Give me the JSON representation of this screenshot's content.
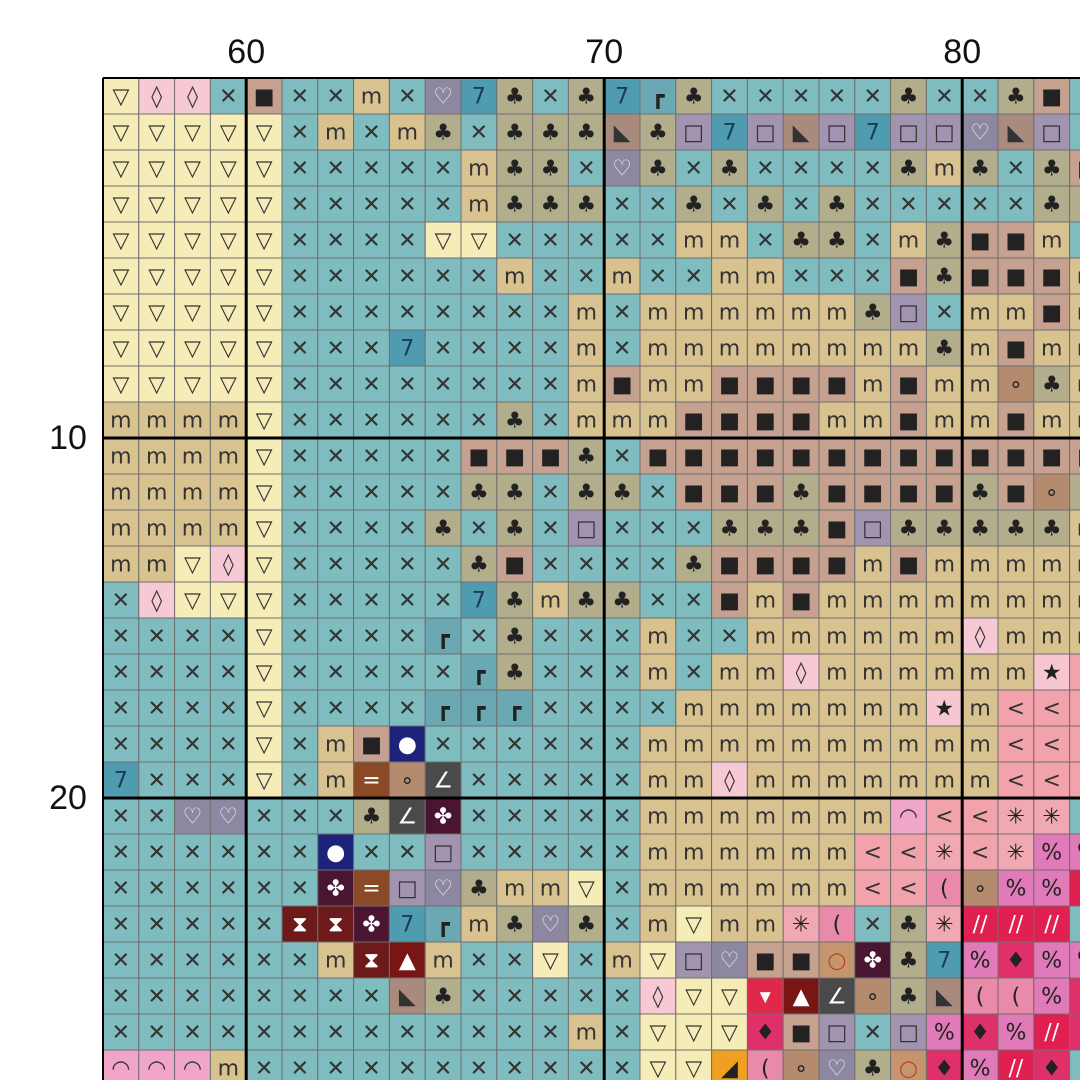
{
  "pattern": {
    "column_labels": [
      "60",
      "70",
      "80"
    ],
    "row_labels": [
      "10",
      "20"
    ],
    "key": {
      "V": {
        "symbol": "▽",
        "color": "#f6ecb8",
        "ink": "#333"
      },
      "X": {
        "symbol": "✕",
        "color": "#7fbcc0",
        "ink": "#333"
      },
      "m": {
        "symbol": "m",
        "color": "#d8c290",
        "ink": "#333"
      },
      "c": {
        "symbol": "♣",
        "color": "#b2ae8c",
        "ink": "#222"
      },
      "s": {
        "symbol": "■",
        "color": "#c6a190",
        "ink": "#222"
      },
      "d": {
        "symbol": "◊",
        "color": "#f6c9d4",
        "ink": "#333"
      },
      "h": {
        "symbol": "♡",
        "color": "#8d87a2",
        "ink": "#eee"
      },
      "q": {
        "symbol": "7",
        "color": "#4f9bb0",
        "ink": "#1a3d55"
      },
      "r": {
        "symbol": "┏",
        "color": "#6aa9b4",
        "ink": "#222"
      },
      "b": {
        "symbol": "□",
        "color": "#a094b0",
        "ink": "#333"
      },
      "t": {
        "symbol": "◣",
        "color": "#a88b7c",
        "ink": "#333"
      },
      "o": {
        "symbol": "∘",
        "color": "#b58b6f",
        "ink": "#222"
      },
      "O": {
        "symbol": "●",
        "color": "#1d237a",
        "ink": "#fff"
      },
      "e": {
        "symbol": "=",
        "color": "#8b4a26",
        "ink": "#fff"
      },
      "a": {
        "symbol": "∠",
        "color": "#4a4a4a",
        "ink": "#fff"
      },
      "p": {
        "symbol": "✤",
        "color": "#4a1530",
        "ink": "#fff"
      },
      "H": {
        "symbol": "⧗",
        "color": "#6d1a1a",
        "ink": "#fff"
      },
      "A": {
        "symbol": "▲",
        "color": "#7a1515",
        "ink": "#fff"
      },
      "k": {
        "symbol": "★",
        "color": "#f6c7d0",
        "ink": "#222"
      },
      "l": {
        "symbol": "<",
        "color": "#f2a2aa",
        "ink": "#333"
      },
      "S": {
        "symbol": "✳",
        "color": "#f0a8b2",
        "ink": "#222"
      },
      "P": {
        "symbol": "%",
        "color": "#e07ab8",
        "ink": "#222"
      },
      "C": {
        "symbol": "(",
        "color": "#e88aa8",
        "ink": "#222"
      },
      "Q": {
        "symbol": "◠",
        "color": "#f0a6c8",
        "ink": "#333"
      },
      "R": {
        "symbol": "//",
        "color": "#e02050",
        "ink": "#fff"
      },
      "D": {
        "symbol": "♦",
        "color": "#e0306a",
        "ink": "#222"
      },
      "T": {
        "symbol": "▾",
        "color": "#e0284a",
        "ink": "#fff"
      },
      "Y": {
        "symbol": "◢",
        "color": "#f0a020",
        "ink": "#222"
      },
      "G": {
        "symbol": "○",
        "color": "#c4956e",
        "ink": "#c0451a"
      }
    },
    "rows": [
      "VddXsXXmXhqcXcqrcXXXXXcXXcsX",
      "VVVVVXmXmcXccctcbqbtbqbbhtbX",
      "VVVVVXXXXXmccXhcXcXXXXcmcXcs",
      "VVVVVXXXXXmcccXXcXcXcXXXXXcc",
      "VVVVVXXXXVVXXXXXmmXccXmcssmX",
      "VVVVVXXXXXXmXXmXXmmXXXscsssm",
      "VVVVVXXXXXXXXmXmmmmmmcbXmmsm",
      "VVVVVXXXqXXXXmXmmmmmmmmcmsmm",
      "VVVVVXXXXXXXXmsmmssssmsmmocm",
      "mmmmVXXXXXXcXmmmssssmmsmmsmm",
      "mmmmVXXXXXssscXsssssssssssss",
      "mmmmVXXXXXccXccXssscsssscsoc",
      "mmmmVXXXXcXcXbXXXcccsbcccccm",
      "mmVdVXXXXXcsXXXXcssssmsmmmmm",
      "XdVVVXXXXXqcmccXXsmsmmmmmmmm",
      "XXXXVXXXXrXcXXXmXXmmmmmmdmmm",
      "XXXXVXXXXXrcXXXmXmmdmmmmmmkl",
      "XXXXVXXXXrrrXXXXmmmmmmmkmlll",
      "XXXXVXmsOXXXXXXmmmmmmmmmmlll",
      "qXXXVXmeoaXXXXXmmdmmmmmmmlll",
      "XXhhXXXcapXXXXXmmmmmmmQllSSX",
      "XXXXXXOXXbXXXXXmmmmmmllSlSPP",
      "XXXXXXpebhcmmVXmmmmmmllCoPPR",
      "XXXXXHHpqrmchcXmVmmSCXcSRRRX",
      "XXXXXXmHAmXXVXmVbhssGpcqPDPP",
      "XXXXXXXXtcXXXXXdVVTAaoctCCPD",
      "XXXXXXXXXXXXXmXVVVDsbXbPDPRD",
      "QQQmXXXXXXXXXXXVVYCohcGDPRDX"
    ]
  }
}
